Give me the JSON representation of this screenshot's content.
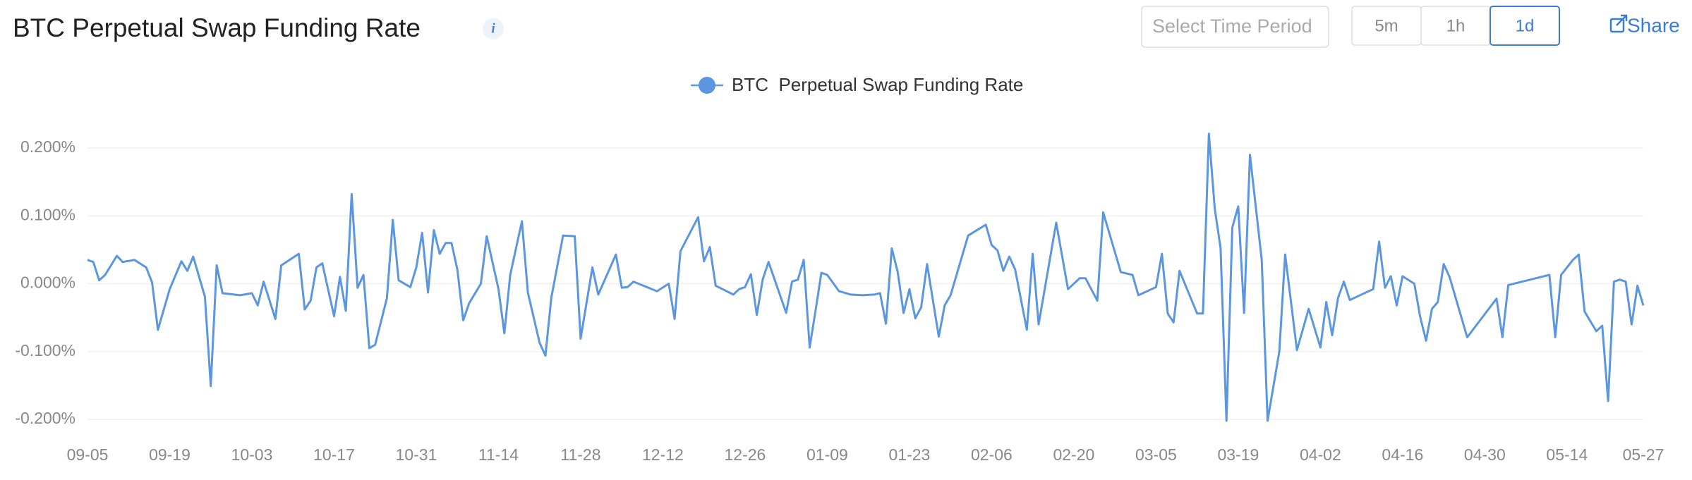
{
  "controls": {
    "time_select_placeholder": "Select Time Period",
    "intervals": [
      "5m",
      "1h",
      "1d"
    ],
    "active_interval": 2,
    "share": "Share"
  },
  "chart_data": {
    "type": "line",
    "title": "BTC Perpetual Swap Funding Rate",
    "x": [
      0,
      1,
      2,
      3,
      5,
      6,
      8,
      10,
      11,
      12,
      14,
      16,
      17,
      18,
      20,
      21,
      22,
      23,
      26,
      28,
      29,
      30,
      32,
      33,
      36,
      37,
      38,
      39,
      40,
      42,
      43,
      44,
      45,
      46,
      47,
      48,
      49,
      51,
      52,
      53,
      55,
      56,
      57,
      58,
      59,
      60,
      61,
      62,
      63,
      64,
      65,
      67,
      68,
      70,
      71,
      72,
      74,
      75,
      77,
      78,
      79,
      81,
      83,
      84,
      86,
      87,
      90,
      91,
      92,
      93,
      97,
      99,
      100,
      101,
      104,
      105,
      106,
      107,
      110,
      111,
      112,
      113,
      114,
      115,
      116,
      119,
      120,
      121,
      122,
      123,
      124,
      125,
      126,
      128,
      130,
      132,
      134,
      135,
      136,
      137,
      138,
      139,
      140,
      141,
      142,
      143,
      145,
      146,
      147,
      150,
      153,
      154,
      155,
      156,
      157,
      158,
      160,
      161,
      162,
      165,
      167,
      169,
      170,
      172,
      173,
      176,
      178,
      179,
      182,
      183,
      184,
      185,
      186,
      189,
      190,
      191,
      192,
      193,
      194,
      195,
      196,
      197,
      198,
      200,
      201,
      203,
      204,
      206,
      208,
      210,
      211,
      212,
      213,
      214,
      215,
      219,
      220,
      221,
      222,
      223,
      224,
      226,
      227,
      228,
      229,
      230,
      231,
      232,
      235,
      240,
      241,
      242,
      249,
      250,
      251,
      253,
      254,
      255,
      257,
      258,
      259,
      260,
      261,
      262,
      263,
      264,
      265
    ],
    "series": [
      {
        "name": "BTC  Perpetual Swap Funding Rate",
        "color": "#5b96e0",
        "values": [
          0.035,
          0.032,
          0.005,
          0.013,
          0.041,
          0.032,
          0.035,
          0.024,
          0.002,
          -0.068,
          -0.008,
          0.033,
          0.019,
          0.04,
          -0.019,
          -0.151,
          0.027,
          -0.014,
          -0.017,
          -0.014,
          -0.032,
          0.003,
          -0.052,
          0.027,
          0.044,
          -0.038,
          -0.025,
          0.024,
          0.03,
          -0.048,
          0.01,
          -0.04,
          0.132,
          -0.006,
          0.013,
          -0.095,
          -0.09,
          -0.021,
          0.094,
          0.005,
          -0.005,
          0.024,
          0.075,
          -0.013,
          0.079,
          0.044,
          0.06,
          0.06,
          0.021,
          -0.054,
          -0.029,
          0,
          0.07,
          -0.008,
          -0.073,
          0.013,
          0.092,
          -0.013,
          -0.087,
          -0.106,
          -0.021,
          0.071,
          0.07,
          -0.081,
          0.024,
          -0.016,
          0.043,
          -0.006,
          -0.005,
          0.003,
          -0.011,
          0,
          -0.052,
          0.048,
          0.098,
          0.033,
          0.054,
          -0.003,
          -0.016,
          -0.008,
          -0.005,
          0.014,
          -0.046,
          0.006,
          0.032,
          -0.043,
          0.003,
          0.006,
          0.035,
          -0.094,
          -0.04,
          0.016,
          0.013,
          -0.011,
          -0.016,
          -0.017,
          -0.016,
          -0.014,
          -0.059,
          0.052,
          0.017,
          -0.043,
          -0.008,
          -0.051,
          -0.035,
          0.029,
          -0.078,
          -0.032,
          -0.017,
          0.071,
          0.087,
          0.057,
          0.049,
          0.019,
          0.04,
          0.021,
          -0.068,
          0.044,
          -0.06,
          0.09,
          -0.008,
          0.008,
          0.008,
          -0.025,
          0.105,
          0.017,
          0.013,
          -0.017,
          -0.005,
          0.044,
          -0.044,
          -0.057,
          0.019,
          -0.044,
          -0.044,
          0.221,
          0.111,
          0.052,
          -0.202,
          0.083,
          0.114,
          -0.043,
          0.19,
          0.035,
          -0.202,
          -0.1,
          0.043,
          -0.098,
          -0.037,
          -0.094,
          -0.027,
          -0.076,
          -0.021,
          0.003,
          -0.024,
          -0.008,
          0.062,
          -0.006,
          0.011,
          -0.032,
          0.011,
          0,
          -0.049,
          -0.084,
          -0.037,
          -0.027,
          0.029,
          0.01,
          -0.079,
          -0.022,
          -0.079,
          -0.002,
          0.013,
          -0.079,
          0.013,
          0.035,
          0.043,
          -0.041,
          -0.07,
          -0.062,
          -0.173,
          0.003,
          0.006,
          0.003,
          -0.06,
          -0.003,
          -0.032
        ]
      }
    ],
    "xlim": [
      0,
      265
    ],
    "xticks": [
      {
        "value": 0,
        "label": "09-05"
      },
      {
        "value": 14,
        "label": "09-19"
      },
      {
        "value": 28,
        "label": "10-03"
      },
      {
        "value": 42,
        "label": "10-17"
      },
      {
        "value": 56,
        "label": "10-31"
      },
      {
        "value": 70,
        "label": "11-14"
      },
      {
        "value": 84,
        "label": "11-28"
      },
      {
        "value": 98,
        "label": "12-12"
      },
      {
        "value": 112,
        "label": "12-26"
      },
      {
        "value": 126,
        "label": "01-09"
      },
      {
        "value": 140,
        "label": "01-23"
      },
      {
        "value": 154,
        "label": "02-06"
      },
      {
        "value": 168,
        "label": "02-20"
      },
      {
        "value": 182,
        "label": "03-05"
      },
      {
        "value": 196,
        "label": "03-19"
      },
      {
        "value": 210,
        "label": "04-02"
      },
      {
        "value": 224,
        "label": "04-16"
      },
      {
        "value": 238,
        "label": "04-30"
      },
      {
        "value": 252,
        "label": "05-14"
      },
      {
        "value": 265,
        "label": "05-27"
      }
    ],
    "ylim": [
      -0.2,
      0.2
    ],
    "yticks": [
      {
        "value": 0.2,
        "label": "0.200%"
      },
      {
        "value": 0.1,
        "label": "0.100%"
      },
      {
        "value": 0,
        "label": "0.000%"
      },
      {
        "value": -0.1,
        "label": "-0.100%"
      },
      {
        "value": -0.2,
        "label": "-0.200%"
      }
    ],
    "grid": true,
    "legend": "top"
  }
}
